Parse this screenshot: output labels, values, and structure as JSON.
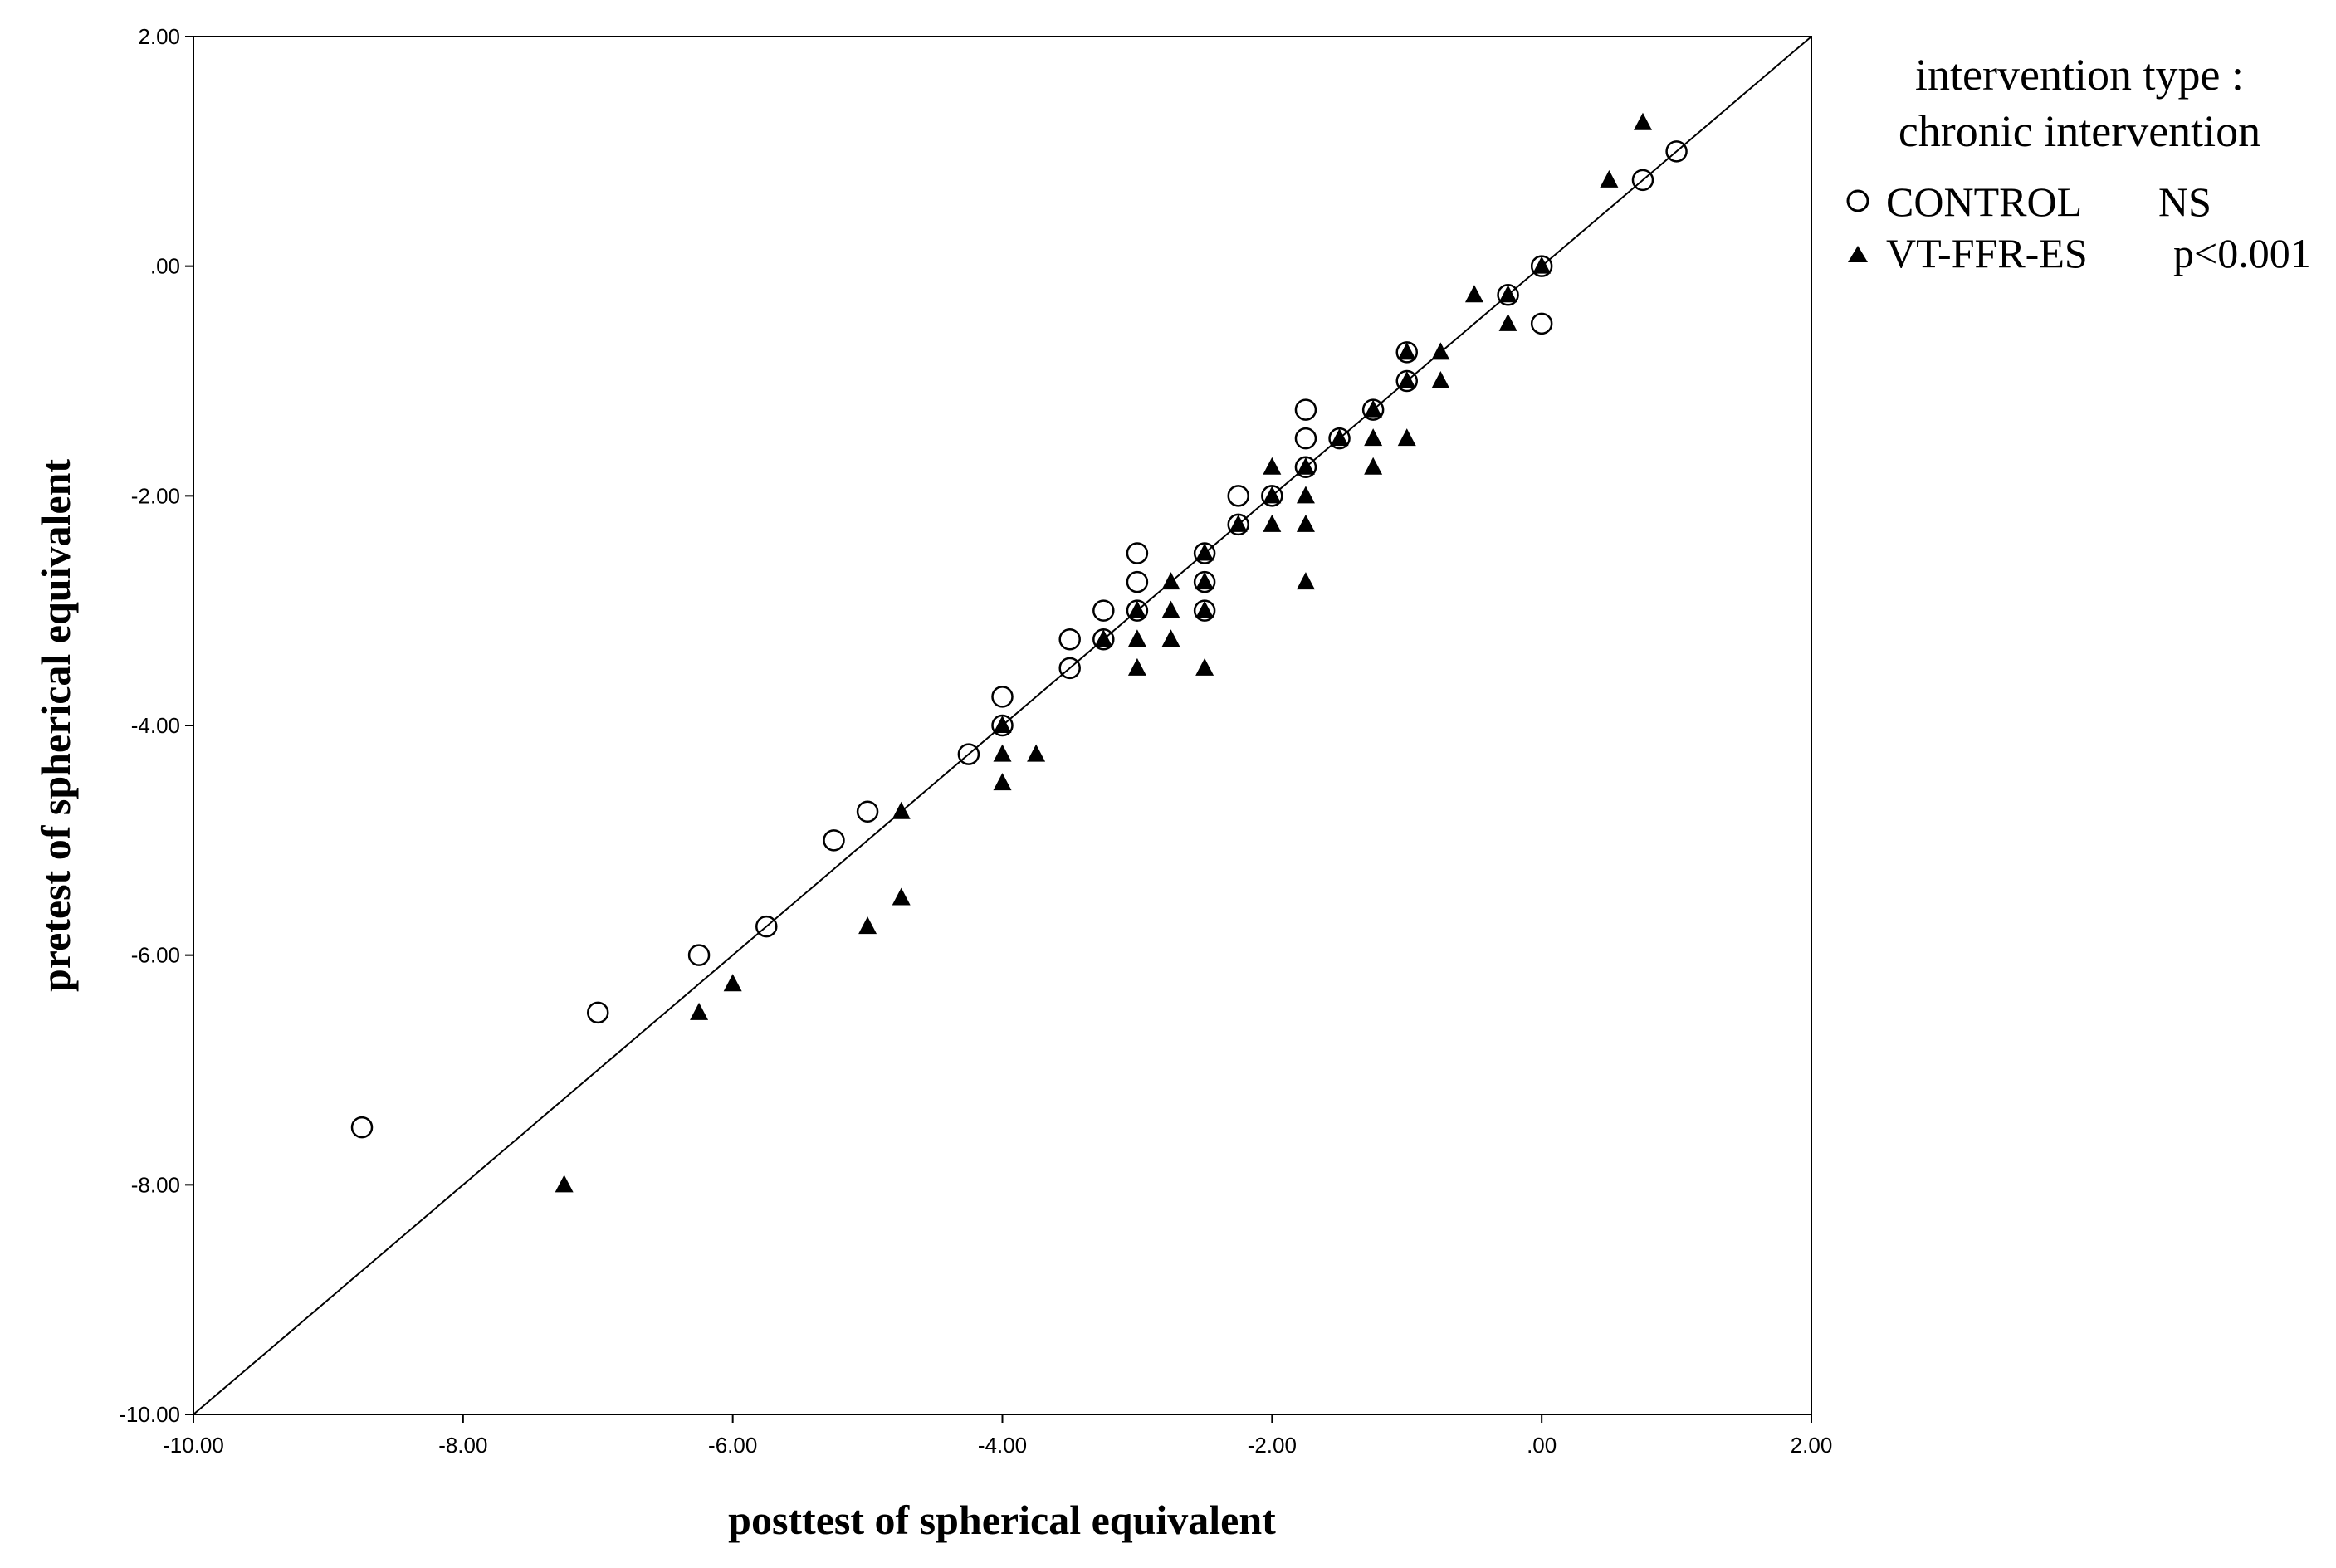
{
  "chart_data": {
    "type": "scatter",
    "xlabel": "posttest of  spherical equivalent",
    "ylabel": "pretest of  spherical equivalent",
    "xlim": [
      -10,
      2
    ],
    "ylim": [
      -10,
      2
    ],
    "x_ticks": [
      "-10.00",
      "-8.00",
      "-6.00",
      "-4.00",
      "-2.00",
      ".00",
      "2.00"
    ],
    "y_ticks": [
      "2.00",
      ".00",
      "-2.00",
      "-4.00",
      "-6.00",
      "-8.00",
      "-10.00"
    ],
    "grid": false,
    "reference_line": {
      "from": [
        -10,
        -10
      ],
      "to": [
        2,
        2
      ]
    },
    "legend": {
      "title_line1": "intervention type :",
      "title_line2": "chronic intervention",
      "placement": "right, outside plot",
      "entries": [
        {
          "name": "CONTROL",
          "stat": "NS",
          "marker": "open-circle"
        },
        {
          "name": "VT-FFR-ES",
          "stat": "p<0.001",
          "marker": "filled-triangle"
        }
      ]
    },
    "series": [
      {
        "name": "CONTROL",
        "marker": "open-circle",
        "color": "#000000",
        "points": [
          [
            -8.75,
            -7.5
          ],
          [
            -7.0,
            -6.5
          ],
          [
            -6.25,
            -6.0
          ],
          [
            -5.75,
            -5.75
          ],
          [
            -5.25,
            -5.0
          ],
          [
            -5.0,
            -4.75
          ],
          [
            -4.25,
            -4.25
          ],
          [
            -4.0,
            -4.0
          ],
          [
            -4.0,
            -3.75
          ],
          [
            -3.5,
            -3.5
          ],
          [
            -3.5,
            -3.25
          ],
          [
            -3.25,
            -3.25
          ],
          [
            -3.25,
            -3.0
          ],
          [
            -3.0,
            -3.0
          ],
          [
            -3.0,
            -2.75
          ],
          [
            -3.0,
            -2.5
          ],
          [
            -2.5,
            -3.0
          ],
          [
            -2.5,
            -2.75
          ],
          [
            -2.5,
            -2.5
          ],
          [
            -2.25,
            -2.25
          ],
          [
            -2.25,
            -2.0
          ],
          [
            -2.0,
            -2.0
          ],
          [
            -1.75,
            -1.75
          ],
          [
            -1.75,
            -1.5
          ],
          [
            -1.75,
            -1.25
          ],
          [
            -1.5,
            -1.5
          ],
          [
            -1.25,
            -1.25
          ],
          [
            -1.0,
            -1.0
          ],
          [
            -1.0,
            -0.75
          ],
          [
            -0.25,
            -0.25
          ],
          [
            0.0,
            0.0
          ],
          [
            0.0,
            -0.5
          ],
          [
            0.75,
            0.75
          ],
          [
            1.0,
            1.0
          ]
        ]
      },
      {
        "name": "VT-FFR-ES",
        "marker": "filled-triangle",
        "color": "#000000",
        "points": [
          [
            -7.25,
            -8.0
          ],
          [
            -6.25,
            -6.5
          ],
          [
            -6.0,
            -6.25
          ],
          [
            -5.0,
            -5.75
          ],
          [
            -4.75,
            -5.5
          ],
          [
            -4.75,
            -4.75
          ],
          [
            -4.0,
            -4.5
          ],
          [
            -4.0,
            -4.25
          ],
          [
            -4.0,
            -4.0
          ],
          [
            -3.75,
            -4.25
          ],
          [
            -3.25,
            -3.25
          ],
          [
            -3.0,
            -3.5
          ],
          [
            -3.0,
            -3.25
          ],
          [
            -3.0,
            -3.0
          ],
          [
            -2.75,
            -3.25
          ],
          [
            -2.75,
            -3.0
          ],
          [
            -2.75,
            -2.75
          ],
          [
            -2.5,
            -3.5
          ],
          [
            -2.5,
            -3.0
          ],
          [
            -2.5,
            -2.75
          ],
          [
            -2.5,
            -2.5
          ],
          [
            -2.25,
            -2.25
          ],
          [
            -2.0,
            -2.25
          ],
          [
            -2.0,
            -2.0
          ],
          [
            -2.0,
            -1.75
          ],
          [
            -1.75,
            -2.75
          ],
          [
            -1.75,
            -2.25
          ],
          [
            -1.75,
            -2.0
          ],
          [
            -1.75,
            -1.75
          ],
          [
            -1.5,
            -1.5
          ],
          [
            -1.25,
            -1.75
          ],
          [
            -1.25,
            -1.5
          ],
          [
            -1.25,
            -1.25
          ],
          [
            -1.0,
            -1.5
          ],
          [
            -1.0,
            -1.0
          ],
          [
            -1.0,
            -0.75
          ],
          [
            -0.75,
            -1.0
          ],
          [
            -0.75,
            -0.75
          ],
          [
            -0.5,
            -0.25
          ],
          [
            -0.25,
            -0.5
          ],
          [
            -0.25,
            -0.25
          ],
          [
            0.0,
            0.0
          ],
          [
            0.5,
            0.75
          ],
          [
            0.75,
            1.25
          ]
        ]
      }
    ]
  }
}
